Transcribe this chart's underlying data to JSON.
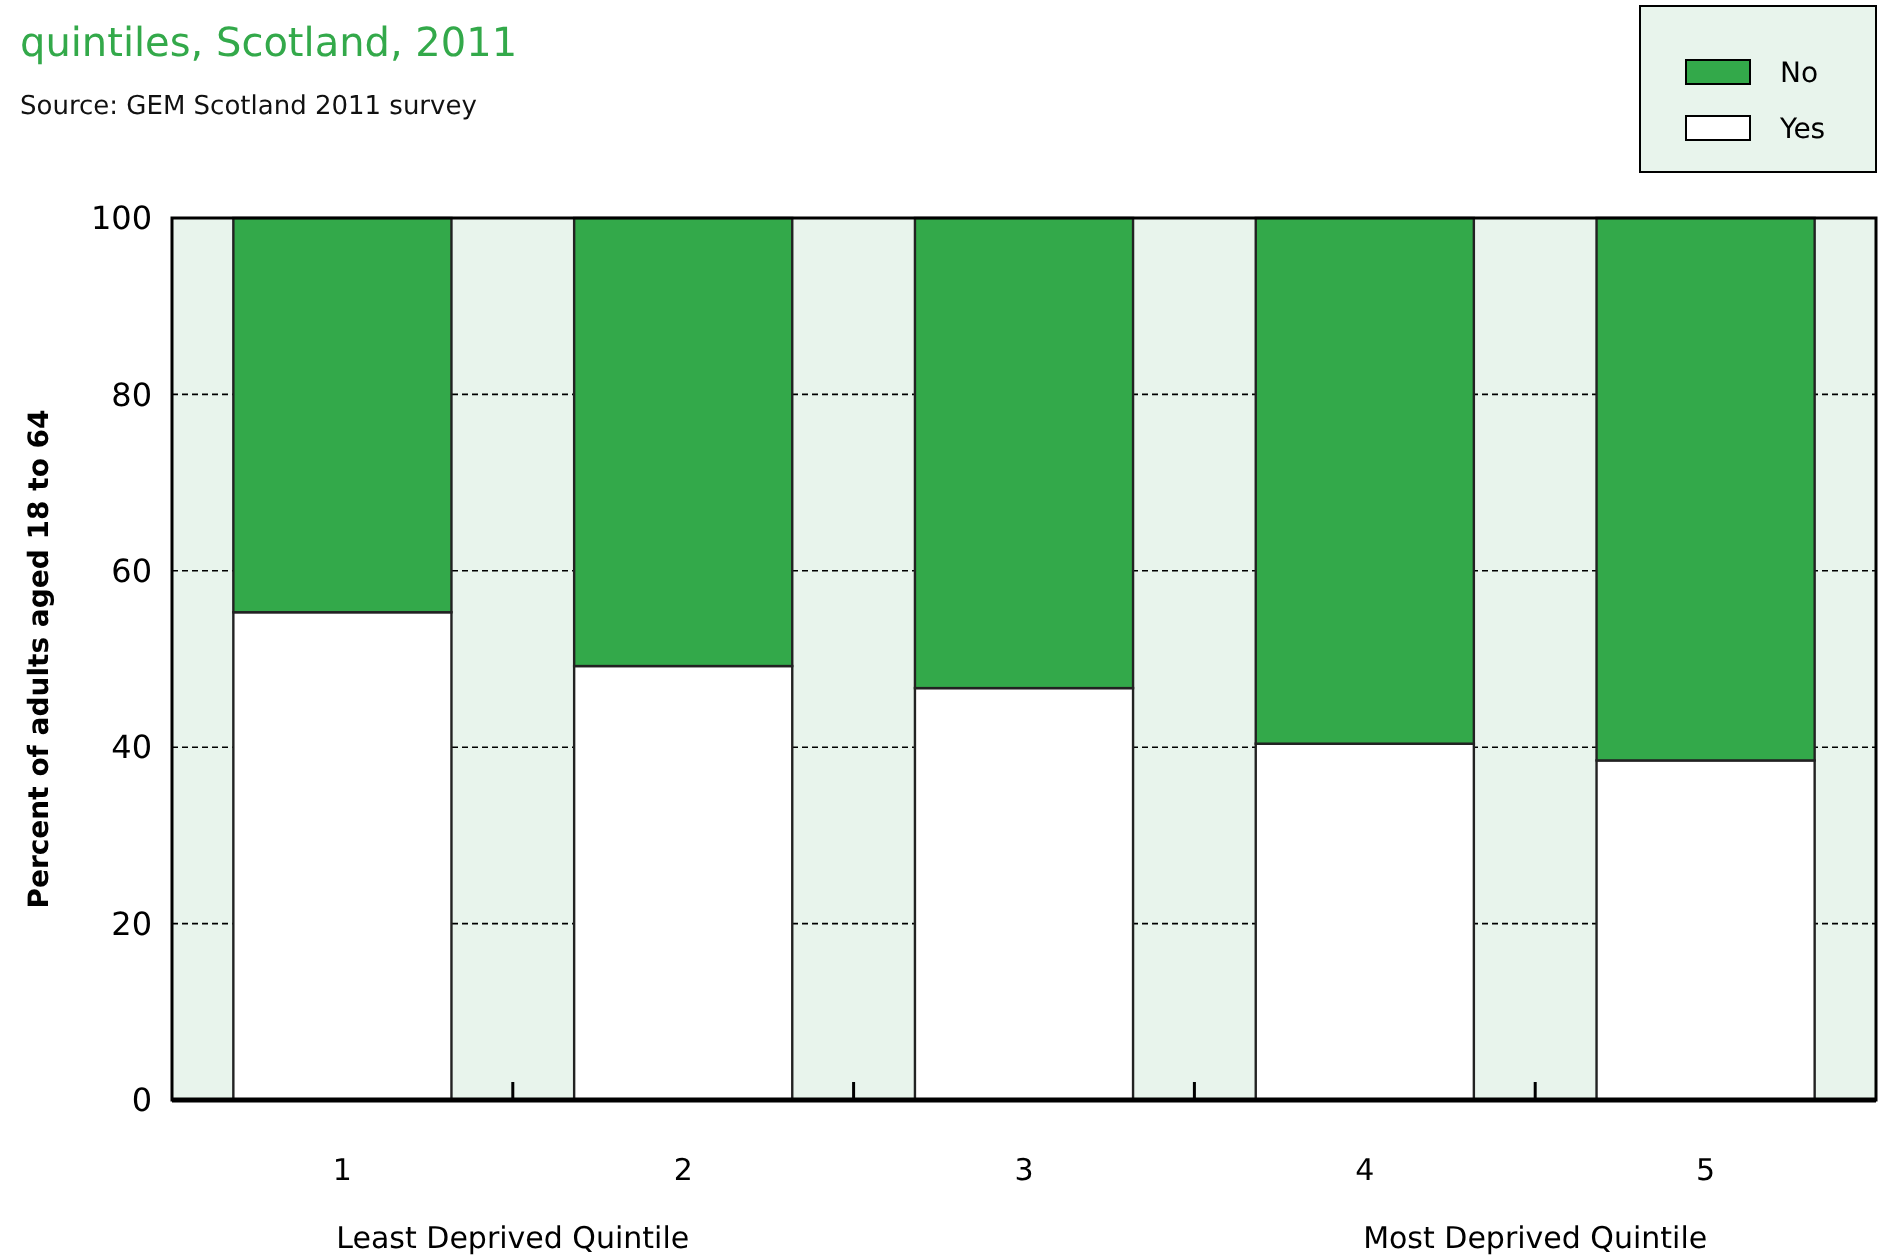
{
  "chart_data": {
    "type": "bar",
    "title": "quintiles, Scotland, 2011",
    "subtitle": "Source: GEM Scotland 2011 survey",
    "ylabel": "Percent of adults aged 18 to 64",
    "annotations": [
      "Least Deprived Quintile",
      "Most Deprived Quintile"
    ],
    "categories": [
      "1",
      "2",
      "3",
      "4",
      "5"
    ],
    "stacked": true,
    "series": [
      {
        "name": "Yes",
        "color": "#ffffff",
        "values": [
          55.3,
          49.2,
          46.7,
          40.4,
          38.5
        ]
      },
      {
        "name": "No",
        "color": "#33a94a",
        "values": [
          44.7,
          50.8,
          53.3,
          59.6,
          61.5
        ]
      }
    ],
    "ylim": [
      0,
      100
    ],
    "yticks": [
      0,
      20,
      40,
      60,
      80,
      100
    ],
    "grid": "y",
    "legend": "top right"
  }
}
